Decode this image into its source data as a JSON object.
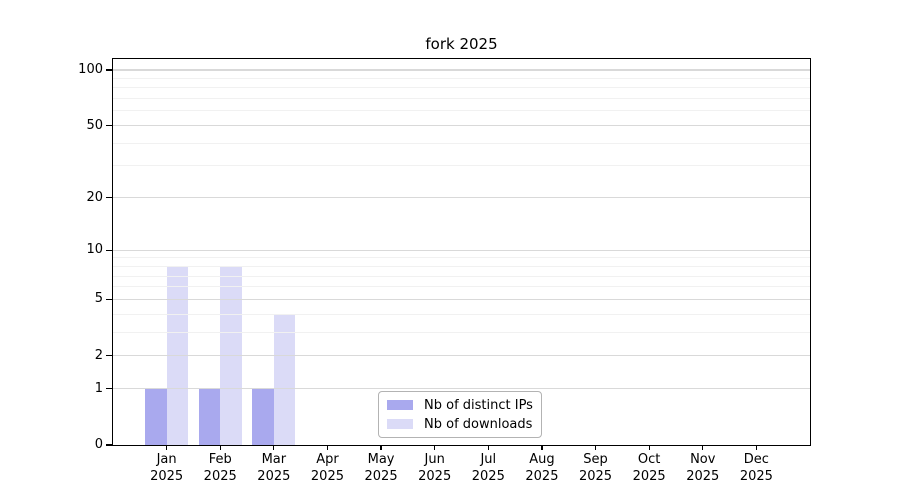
{
  "page": {
    "background": "#ffffff"
  },
  "chart_data": {
    "type": "bar",
    "title": "fork 2025",
    "categories": [
      "Jan",
      "Feb",
      "Mar",
      "Apr",
      "May",
      "Jun",
      "Jul",
      "Aug",
      "Sep",
      "Oct",
      "Nov",
      "Dec"
    ],
    "category_year": "2025",
    "series": [
      {
        "name": "Nb of distinct IPs",
        "color": "#a9a9ee",
        "values": [
          1,
          1,
          1,
          0,
          0,
          0,
          0,
          0,
          0,
          0,
          0,
          0
        ]
      },
      {
        "name": "Nb of downloads",
        "color": "#dbdbf7",
        "values": [
          8,
          8,
          4,
          0,
          0,
          0,
          0,
          0,
          0,
          0,
          0,
          0
        ]
      }
    ],
    "y_axis": {
      "scale": "log2(1+x)",
      "range": [
        0,
        100
      ],
      "ticks": [
        0,
        1,
        2,
        5,
        10,
        20,
        50,
        100
      ],
      "tick_labels": [
        "0",
        "1",
        "2",
        "5",
        "10",
        "20",
        "50",
        "100"
      ],
      "minor_gridlines": [
        3,
        4,
        6,
        7,
        8,
        9,
        30,
        40,
        60,
        70,
        80,
        90
      ]
    },
    "legend": {
      "position": "lower-center"
    },
    "colors": {
      "major_grid": "#d9d9d9",
      "minor_grid": "#f1f1f1",
      "spine": "#000000",
      "text": "#000000"
    }
  }
}
